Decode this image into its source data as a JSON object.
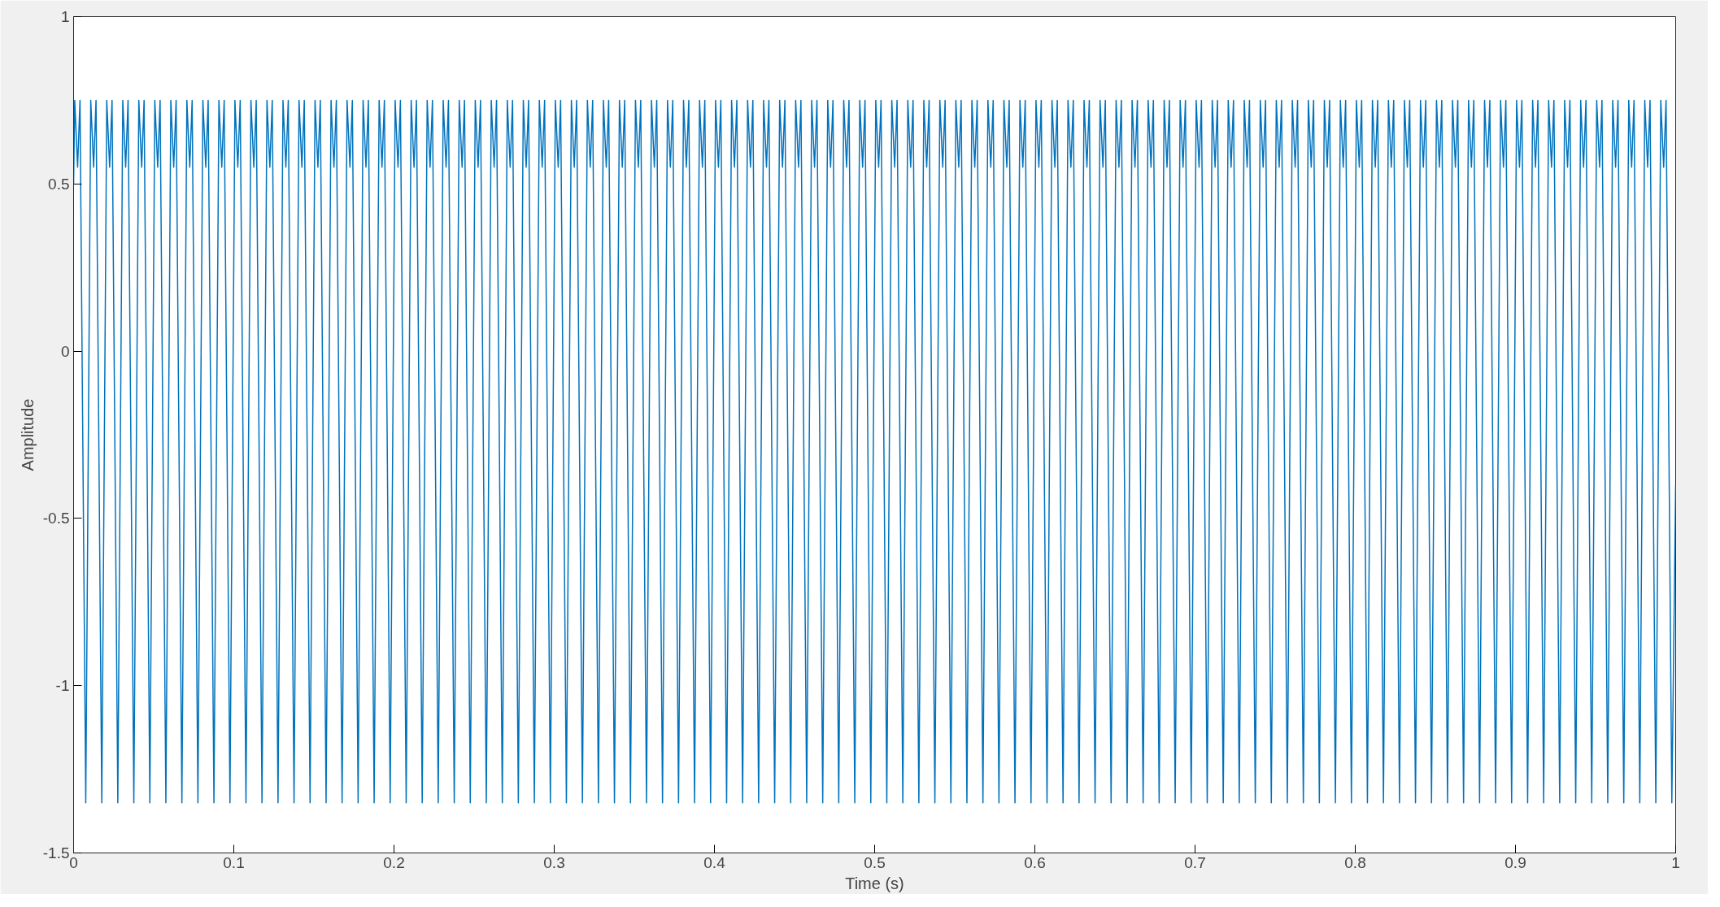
{
  "chart_data": {
    "type": "line",
    "xlabel": "Time (s)",
    "ylabel": "Amplitude",
    "xlim": [
      0,
      1
    ],
    "ylim": [
      -1.5,
      1
    ],
    "xticks": [
      0,
      0.1,
      0.2,
      0.3,
      0.4,
      0.5,
      0.6,
      0.7,
      0.8,
      0.9,
      1
    ],
    "yticks": [
      -1.5,
      -1,
      -0.5,
      0,
      0.5,
      1
    ],
    "grid": false,
    "marker": "none",
    "line_style": "solid",
    "series": [
      {
        "color": "#0072bd",
        "x": [
          0,
          0.0007,
          0.0025,
          0.004,
          0.0076,
          0.0107,
          0.0125,
          0.014,
          0.0176,
          0.0207,
          0.0225,
          0.024,
          0.0276,
          0.0307,
          0.0325,
          0.034,
          0.0376,
          0.0407,
          0.0425,
          0.044,
          0.0476,
          0.0507,
          0.0525,
          0.054,
          0.0576,
          0.0607,
          0.0625,
          0.064,
          0.0676,
          0.0707,
          0.0725,
          0.074,
          0.0776,
          0.0807,
          0.0825,
          0.084,
          0.0876,
          0.0907,
          0.0925,
          0.094,
          0.0976,
          0.1007,
          0.1025,
          0.104,
          0.1076,
          0.1107,
          0.1125,
          0.114,
          0.1176,
          0.1207,
          0.1225,
          0.124,
          0.1276,
          0.1307,
          0.1325,
          0.134,
          0.1376,
          0.1407,
          0.1425,
          0.144,
          0.1476,
          0.1507,
          0.1525,
          0.154,
          0.1576,
          0.1607,
          0.1625,
          0.164,
          0.1676,
          0.1707,
          0.1725,
          0.174,
          0.1776,
          0.1807,
          0.1825,
          0.184,
          0.1876,
          0.1907,
          0.1925,
          0.194,
          0.1976,
          0.2007,
          0.2025,
          0.204,
          0.2076,
          0.2107,
          0.2125,
          0.214,
          0.2176,
          0.2207,
          0.2225,
          0.224,
          0.2276,
          0.2307,
          0.2325,
          0.234,
          0.2376,
          0.2407,
          0.2425,
          0.244,
          0.2476,
          0.2507,
          0.2525,
          0.254,
          0.2576,
          0.2607,
          0.2625,
          0.264,
          0.2676,
          0.2707,
          0.2725,
          0.274,
          0.2776,
          0.2807,
          0.2825,
          0.284,
          0.2876,
          0.2907,
          0.2925,
          0.294,
          0.2976,
          0.3007,
          0.3025,
          0.304,
          0.3076,
          0.3107,
          0.3125,
          0.314,
          0.3176,
          0.3207,
          0.3225,
          0.324,
          0.3276,
          0.3307,
          0.3325,
          0.334,
          0.3376,
          0.3407,
          0.3425,
          0.344,
          0.3476,
          0.3507,
          0.3525,
          0.354,
          0.3576,
          0.3607,
          0.3625,
          0.364,
          0.3676,
          0.3707,
          0.3725,
          0.374,
          0.3776,
          0.3807,
          0.3825,
          0.384,
          0.3876,
          0.3907,
          0.3925,
          0.394,
          0.3976,
          0.4007,
          0.4025,
          0.404,
          0.4076,
          0.4107,
          0.4125,
          0.414,
          0.4176,
          0.4207,
          0.4225,
          0.424,
          0.4276,
          0.4307,
          0.4325,
          0.434,
          0.4376,
          0.4407,
          0.4425,
          0.444,
          0.4476,
          0.4507,
          0.4525,
          0.454,
          0.4576,
          0.4607,
          0.4625,
          0.464,
          0.4676,
          0.4707,
          0.4725,
          0.474,
          0.4776,
          0.4807,
          0.4825,
          0.484,
          0.4876,
          0.4907,
          0.4925,
          0.494,
          0.4976,
          0.5007,
          0.5025,
          0.504,
          0.5076,
          0.5107,
          0.5125,
          0.514,
          0.5176,
          0.5207,
          0.5225,
          0.524,
          0.5276,
          0.5307,
          0.5325,
          0.534,
          0.5376,
          0.5407,
          0.5425,
          0.544,
          0.5476,
          0.5507,
          0.5525,
          0.554,
          0.5576,
          0.5607,
          0.5625,
          0.564,
          0.5676,
          0.5707,
          0.5725,
          0.574,
          0.5776,
          0.5807,
          0.5825,
          0.584,
          0.5876,
          0.5907,
          0.5925,
          0.594,
          0.5976,
          0.6007,
          0.6025,
          0.604,
          0.6076,
          0.6107,
          0.6125,
          0.614,
          0.6176,
          0.6207,
          0.6225,
          0.624,
          0.6276,
          0.6307,
          0.6325,
          0.634,
          0.6376,
          0.6407,
          0.6425,
          0.644,
          0.6476,
          0.6507,
          0.6525,
          0.654,
          0.6576,
          0.6607,
          0.6625,
          0.664,
          0.6676,
          0.6707,
          0.6725,
          0.674,
          0.6776,
          0.6807,
          0.6825,
          0.684,
          0.6876,
          0.6907,
          0.6925,
          0.694,
          0.6976,
          0.7007,
          0.7025,
          0.704,
          0.7076,
          0.7107,
          0.7125,
          0.714,
          0.7176,
          0.7207,
          0.7225,
          0.724,
          0.7276,
          0.7307,
          0.7325,
          0.734,
          0.7376,
          0.7407,
          0.7425,
          0.744,
          0.7476,
          0.7507,
          0.7525,
          0.754,
          0.7576,
          0.7607,
          0.7625,
          0.764,
          0.7676,
          0.7707,
          0.7725,
          0.774,
          0.7776,
          0.7807,
          0.7825,
          0.784,
          0.7876,
          0.7907,
          0.7925,
          0.794,
          0.7976,
          0.8007,
          0.8025,
          0.804,
          0.8076,
          0.8107,
          0.8125,
          0.814,
          0.8176,
          0.8207,
          0.8225,
          0.824,
          0.8276,
          0.8307,
          0.8325,
          0.834,
          0.8376,
          0.8407,
          0.8425,
          0.844,
          0.8476,
          0.8507,
          0.8525,
          0.854,
          0.8576,
          0.8607,
          0.8625,
          0.864,
          0.8676,
          0.8707,
          0.8725,
          0.874,
          0.8776,
          0.8807,
          0.8825,
          0.884,
          0.8876,
          0.8907,
          0.8925,
          0.894,
          0.8976,
          0.9007,
          0.9025,
          0.904,
          0.9076,
          0.9107,
          0.9125,
          0.914,
          0.9176,
          0.9207,
          0.9225,
          0.924,
          0.9276,
          0.9307,
          0.9325,
          0.934,
          0.9376,
          0.9407,
          0.9425,
          0.944,
          0.9476,
          0.9507,
          0.9525,
          0.954,
          0.9576,
          0.9607,
          0.9625,
          0.964,
          0.9676,
          0.9707,
          0.9725,
          0.974,
          0.9776,
          0.9807,
          0.9825,
          0.984,
          0.9876,
          0.9907,
          0.9925,
          0.994,
          0.9976,
          1
        ],
        "values": [
          0.5,
          0.75,
          0.55,
          0.75,
          -1.35,
          0.75,
          0.55,
          0.75,
          -1.35,
          0.75,
          0.55,
          0.75,
          -1.35,
          0.75,
          0.55,
          0.75,
          -1.35,
          0.75,
          0.55,
          0.75,
          -1.35,
          0.75,
          0.55,
          0.75,
          -1.35,
          0.75,
          0.55,
          0.75,
          -1.35,
          0.75,
          0.55,
          0.75,
          -1.35,
          0.75,
          0.55,
          0.75,
          -1.35,
          0.75,
          0.55,
          0.75,
          -1.35,
          0.75,
          0.55,
          0.75,
          -1.35,
          0.75,
          0.55,
          0.75,
          -1.35,
          0.75,
          0.55,
          0.75,
          -1.35,
          0.75,
          0.55,
          0.75,
          -1.35,
          0.75,
          0.55,
          0.75,
          -1.35,
          0.75,
          0.55,
          0.75,
          -1.35,
          0.75,
          0.55,
          0.75,
          -1.35,
          0.75,
          0.55,
          0.75,
          -1.35,
          0.75,
          0.55,
          0.75,
          -1.35,
          0.75,
          0.55,
          0.75,
          -1.35,
          0.75,
          0.55,
          0.75,
          -1.35,
          0.75,
          0.55,
          0.75,
          -1.35,
          0.75,
          0.55,
          0.75,
          -1.35,
          0.75,
          0.55,
          0.75,
          -1.35,
          0.75,
          0.55,
          0.75,
          -1.35,
          0.75,
          0.55,
          0.75,
          -1.35,
          0.75,
          0.55,
          0.75,
          -1.35,
          0.75,
          0.55,
          0.75,
          -1.35,
          0.75,
          0.55,
          0.75,
          -1.35,
          0.75,
          0.55,
          0.75,
          -1.35,
          0.75,
          0.55,
          0.75,
          -1.35,
          0.75,
          0.55,
          0.75,
          -1.35,
          0.75,
          0.55,
          0.75,
          -1.35,
          0.75,
          0.55,
          0.75,
          -1.35,
          0.75,
          0.55,
          0.75,
          -1.35,
          0.75,
          0.55,
          0.75,
          -1.35,
          0.75,
          0.55,
          0.75,
          -1.35,
          0.75,
          0.55,
          0.75,
          -1.35,
          0.75,
          0.55,
          0.75,
          -1.35,
          0.75,
          0.55,
          0.75,
          -1.35,
          0.75,
          0.55,
          0.75,
          -1.35,
          0.75,
          0.55,
          0.75,
          -1.35,
          0.75,
          0.55,
          0.75,
          -1.35,
          0.75,
          0.55,
          0.75,
          -1.35,
          0.75,
          0.55,
          0.75,
          -1.35,
          0.75,
          0.55,
          0.75,
          -1.35,
          0.75,
          0.55,
          0.75,
          -1.35,
          0.75,
          0.55,
          0.75,
          -1.35,
          0.75,
          0.55,
          0.75,
          -1.35,
          0.75,
          0.55,
          0.75,
          -1.35,
          0.75,
          0.55,
          0.75,
          -1.35,
          0.75,
          0.55,
          0.75,
          -1.35,
          0.75,
          0.55,
          0.75,
          -1.35,
          0.75,
          0.55,
          0.75,
          -1.35,
          0.75,
          0.55,
          0.75,
          -1.35,
          0.75,
          0.55,
          0.75,
          -1.35,
          0.75,
          0.55,
          0.75,
          -1.35,
          0.75,
          0.55,
          0.75,
          -1.35,
          0.75,
          0.55,
          0.75,
          -1.35,
          0.75,
          0.55,
          0.75,
          -1.35,
          0.75,
          0.55,
          0.75,
          -1.35,
          0.75,
          0.55,
          0.75,
          -1.35,
          0.75,
          0.55,
          0.75,
          -1.35,
          0.75,
          0.55,
          0.75,
          -1.35,
          0.75,
          0.55,
          0.75,
          -1.35,
          0.75,
          0.55,
          0.75,
          -1.35,
          0.75,
          0.55,
          0.75,
          -1.35,
          0.75,
          0.55,
          0.75,
          -1.35,
          0.75,
          0.55,
          0.75,
          -1.35,
          0.75,
          0.55,
          0.75,
          -1.35,
          0.75,
          0.55,
          0.75,
          -1.35,
          0.75,
          0.55,
          0.75,
          -1.35,
          0.75,
          0.55,
          0.75,
          -1.35,
          0.75,
          0.55,
          0.75,
          -1.35,
          0.75,
          0.55,
          0.75,
          -1.35,
          0.75,
          0.55,
          0.75,
          -1.35,
          0.75,
          0.55,
          0.75,
          -1.35,
          0.75,
          0.55,
          0.75,
          -1.35,
          0.75,
          0.55,
          0.75,
          -1.35,
          0.75,
          0.55,
          0.75,
          -1.35,
          0.75,
          0.55,
          0.75,
          -1.35,
          0.75,
          0.55,
          0.75,
          -1.35,
          0.75,
          0.55,
          0.75,
          -1.35,
          0.75,
          0.55,
          0.75,
          -1.35,
          0.75,
          0.55,
          0.75,
          -1.35,
          0.75,
          0.55,
          0.75,
          -1.35,
          0.75,
          0.55,
          0.75,
          -1.35,
          0.75,
          0.55,
          0.75,
          -1.35,
          0.75,
          0.55,
          0.75,
          -1.35,
          0.75,
          0.55,
          0.75,
          -1.35,
          0.75,
          0.55,
          0.75,
          -1.35,
          0.75,
          0.55,
          0.75,
          -1.35,
          0.75,
          0.55,
          0.75,
          -1.35,
          0.75,
          0.55,
          0.75,
          -1.35,
          0.75,
          0.55,
          0.75,
          -1.35,
          0.75,
          0.55,
          0.75,
          -1.35,
          0.75,
          0.55,
          0.75,
          -1.35,
          0.75,
          0.55,
          0.75,
          -1.35,
          0.75,
          0.55,
          0.75,
          -1.35,
          0.75,
          0.55,
          0.75,
          -1.35,
          -0.4
        ]
      }
    ]
  }
}
